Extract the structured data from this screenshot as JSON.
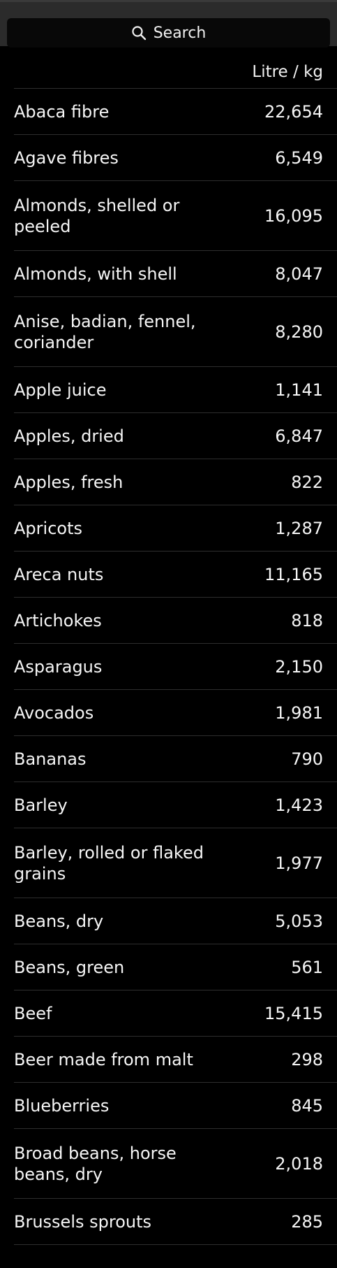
{
  "search": {
    "placeholder": "Search",
    "icon": "search-icon"
  },
  "table": {
    "header": "Litre / kg",
    "rows": [
      {
        "name": "Abaca fibre",
        "value": "22,654"
      },
      {
        "name": "Agave fibres",
        "value": "6,549"
      },
      {
        "name": "Almonds, shelled or peeled",
        "value": "16,095"
      },
      {
        "name": "Almonds, with shell",
        "value": "8,047"
      },
      {
        "name": "Anise, badian, fennel, coriander",
        "value": "8,280"
      },
      {
        "name": "Apple juice",
        "value": "1,141"
      },
      {
        "name": "Apples, dried",
        "value": "6,847"
      },
      {
        "name": "Apples, fresh",
        "value": "822"
      },
      {
        "name": "Apricots",
        "value": "1,287"
      },
      {
        "name": "Areca nuts",
        "value": "11,165"
      },
      {
        "name": "Artichokes",
        "value": "818"
      },
      {
        "name": "Asparagus",
        "value": "2,150"
      },
      {
        "name": "Avocados",
        "value": "1,981"
      },
      {
        "name": "Bananas",
        "value": "790"
      },
      {
        "name": "Barley",
        "value": "1,423"
      },
      {
        "name": "Barley, rolled or flaked grains",
        "value": "1,977"
      },
      {
        "name": "Beans, dry",
        "value": "5,053"
      },
      {
        "name": "Beans, green",
        "value": "561"
      },
      {
        "name": "Beef",
        "value": "15,415"
      },
      {
        "name": "Beer made from malt",
        "value": "298"
      },
      {
        "name": "Blueberries",
        "value": "845"
      },
      {
        "name": "Broad beans, horse beans, dry",
        "value": "2,018"
      },
      {
        "name": "Brussels sprouts",
        "value": "285"
      }
    ]
  }
}
